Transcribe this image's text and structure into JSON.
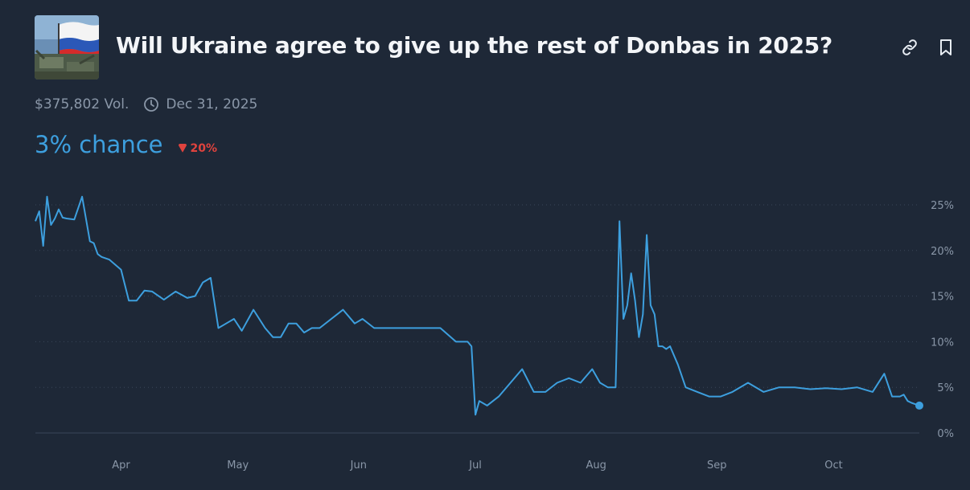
{
  "market": {
    "title": "Will Ukraine agree to give up the rest of Donbas in 2025?",
    "volume": "$375,802 Vol.",
    "end_date": "Dec 31, 2025",
    "chance_label": "3% chance",
    "change_label": "20%",
    "change_direction": "down",
    "thumbnail_icon": "russian-flag-tanks-image"
  },
  "toolbar": {
    "link_icon": "link-icon",
    "bookmark_icon": "bookmark-icon"
  },
  "colors": {
    "background": "#1e2837",
    "line": "#3d9fde",
    "grid": "#3a4658",
    "axis_text": "#8a97a8",
    "down": "#e0433e"
  },
  "chart_data": {
    "type": "line",
    "title": "",
    "xlabel": "",
    "ylabel": "",
    "x_tick_labels": [
      "Apr",
      "May",
      "Jun",
      "Jul",
      "Aug",
      "Sep",
      "Oct"
    ],
    "y_tick_labels": [
      "25%",
      "20%",
      "15%",
      "10%",
      "5%",
      "0%"
    ],
    "y_ticks": [
      25,
      20,
      15,
      10,
      5,
      0
    ],
    "ylim": [
      0,
      25
    ],
    "y_axis_position": "right",
    "grid": "horizontal-dotted",
    "series": [
      {
        "x": [
          "Mar 10",
          "Mar 11",
          "Mar 12",
          "Mar 13",
          "Mar 14",
          "Mar 15",
          "Mar 16",
          "Mar 17",
          "Mar 18",
          "Mar 20",
          "Mar 22",
          "Mar 24",
          "Mar 25",
          "Mar 26",
          "Mar 27",
          "Mar 29",
          "Apr 1",
          "Apr 3",
          "Apr 5",
          "Apr 7",
          "Apr 9",
          "Apr 12",
          "Apr 15",
          "Apr 18",
          "Apr 20",
          "Apr 22",
          "Apr 24",
          "Apr 26",
          "Apr 28",
          "Apr 30",
          "May 2",
          "May 5",
          "May 8",
          "May 10",
          "May 12",
          "May 14",
          "May 16",
          "May 18",
          "May 20",
          "May 22",
          "May 25",
          "May 28",
          "May 31",
          "Jun 2",
          "Jun 5",
          "Jun 8",
          "Jun 10",
          "Jun 12",
          "Jun 14",
          "Jun 18",
          "Jun 22",
          "Jun 26",
          "Jun 29",
          "Jun 30",
          "Jul 1",
          "Jul 2",
          "Jul 4",
          "Jul 7",
          "Jul 10",
          "Jul 13",
          "Jul 16",
          "Jul 19",
          "Jul 22",
          "Jul 25",
          "Jul 28",
          "Jul 31",
          "Aug 2",
          "Aug 4",
          "Aug 6",
          "Aug 7",
          "Aug 8",
          "Aug 9",
          "Aug 10",
          "Aug 11",
          "Aug 12",
          "Aug 13",
          "Aug 14",
          "Aug 15",
          "Aug 16",
          "Aug 17",
          "Aug 18",
          "Aug 19",
          "Aug 20",
          "Aug 22",
          "Aug 24",
          "Aug 27",
          "Aug 30",
          "Sep 2",
          "Sep 5",
          "Sep 9",
          "Sep 13",
          "Sep 17",
          "Sep 21",
          "Sep 25",
          "Sep 29",
          "Oct 3",
          "Oct 7",
          "Oct 11",
          "Oct 14",
          "Oct 16",
          "Oct 18",
          "Oct 19",
          "Oct 20",
          "Oct 21",
          "Oct 23"
        ],
        "y": [
          23.2,
          24.3,
          20.5,
          25.9,
          22.8,
          23.5,
          24.5,
          23.6,
          23.5,
          23.4,
          25.9,
          21.0,
          20.8,
          19.6,
          19.3,
          19.0,
          17.9,
          14.5,
          14.5,
          15.6,
          15.5,
          14.6,
          15.5,
          14.8,
          15.0,
          16.5,
          17.0,
          11.5,
          12.0,
          12.5,
          11.2,
          13.5,
          11.5,
          10.5,
          10.5,
          12.0,
          12.0,
          11.0,
          11.5,
          11.5,
          12.5,
          13.5,
          12.0,
          12.5,
          11.5,
          11.5,
          11.5,
          11.5,
          11.5,
          11.5,
          11.5,
          10.0,
          10.0,
          9.5,
          2.0,
          3.5,
          3.0,
          4.0,
          5.5,
          7.0,
          4.5,
          4.5,
          5.5,
          6.0,
          5.5,
          7.0,
          5.5,
          5.0,
          5.0,
          23.2,
          12.5,
          14.0,
          17.5,
          14.5,
          10.5,
          13.0,
          21.7,
          14.0,
          13.0,
          9.5,
          9.5,
          9.2,
          9.5,
          7.5,
          5.0,
          4.5,
          4.0,
          4.0,
          4.5,
          5.5,
          4.5,
          5.0,
          5.0,
          4.8,
          4.9,
          4.8,
          5.0,
          4.5,
          6.5,
          4.0,
          4.0,
          4.2,
          3.5,
          3.3,
          3.0
        ]
      }
    ]
  }
}
